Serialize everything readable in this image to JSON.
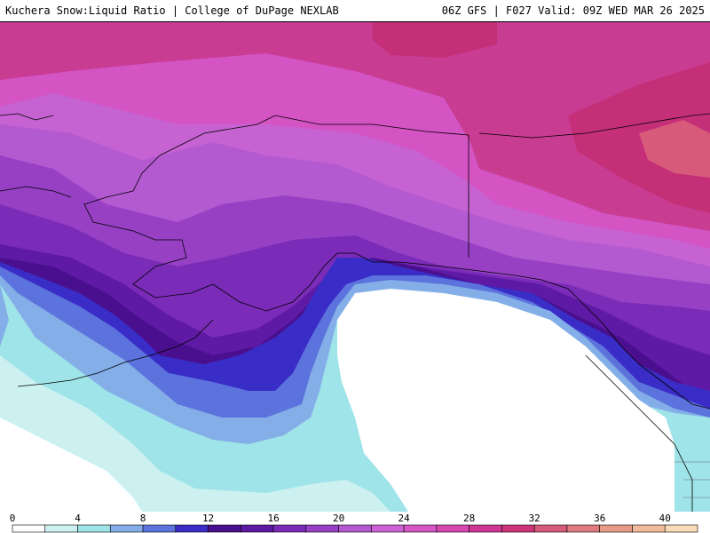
{
  "header": {
    "left_title": "Kuchera Snow:Liquid Ratio | College of DuPage NEXLAB",
    "right_title": "06Z GFS | F027 Valid: 09Z WED MAR 26 2025"
  },
  "legend": {
    "ticks": [
      0,
      4,
      8,
      12,
      16,
      20,
      24,
      28,
      32,
      36,
      40
    ],
    "bin_min": 0,
    "bin_max": 42,
    "bin_step": 2,
    "colors": [
      "#ffffff",
      "#cdf1f1",
      "#9fe4e8",
      "#84aee8",
      "#5c72dc",
      "#3a2cc6",
      "#4a0f8e",
      "#5e1aa4",
      "#7a2bb8",
      "#9740c4",
      "#b45ad0",
      "#cc62d4",
      "#d556c4",
      "#d648b0",
      "#cf3694",
      "#cc357a",
      "#d65a7a",
      "#df7a7e",
      "#e89a88",
      "#f0bb9a",
      "#f8dcb8"
    ]
  }
}
